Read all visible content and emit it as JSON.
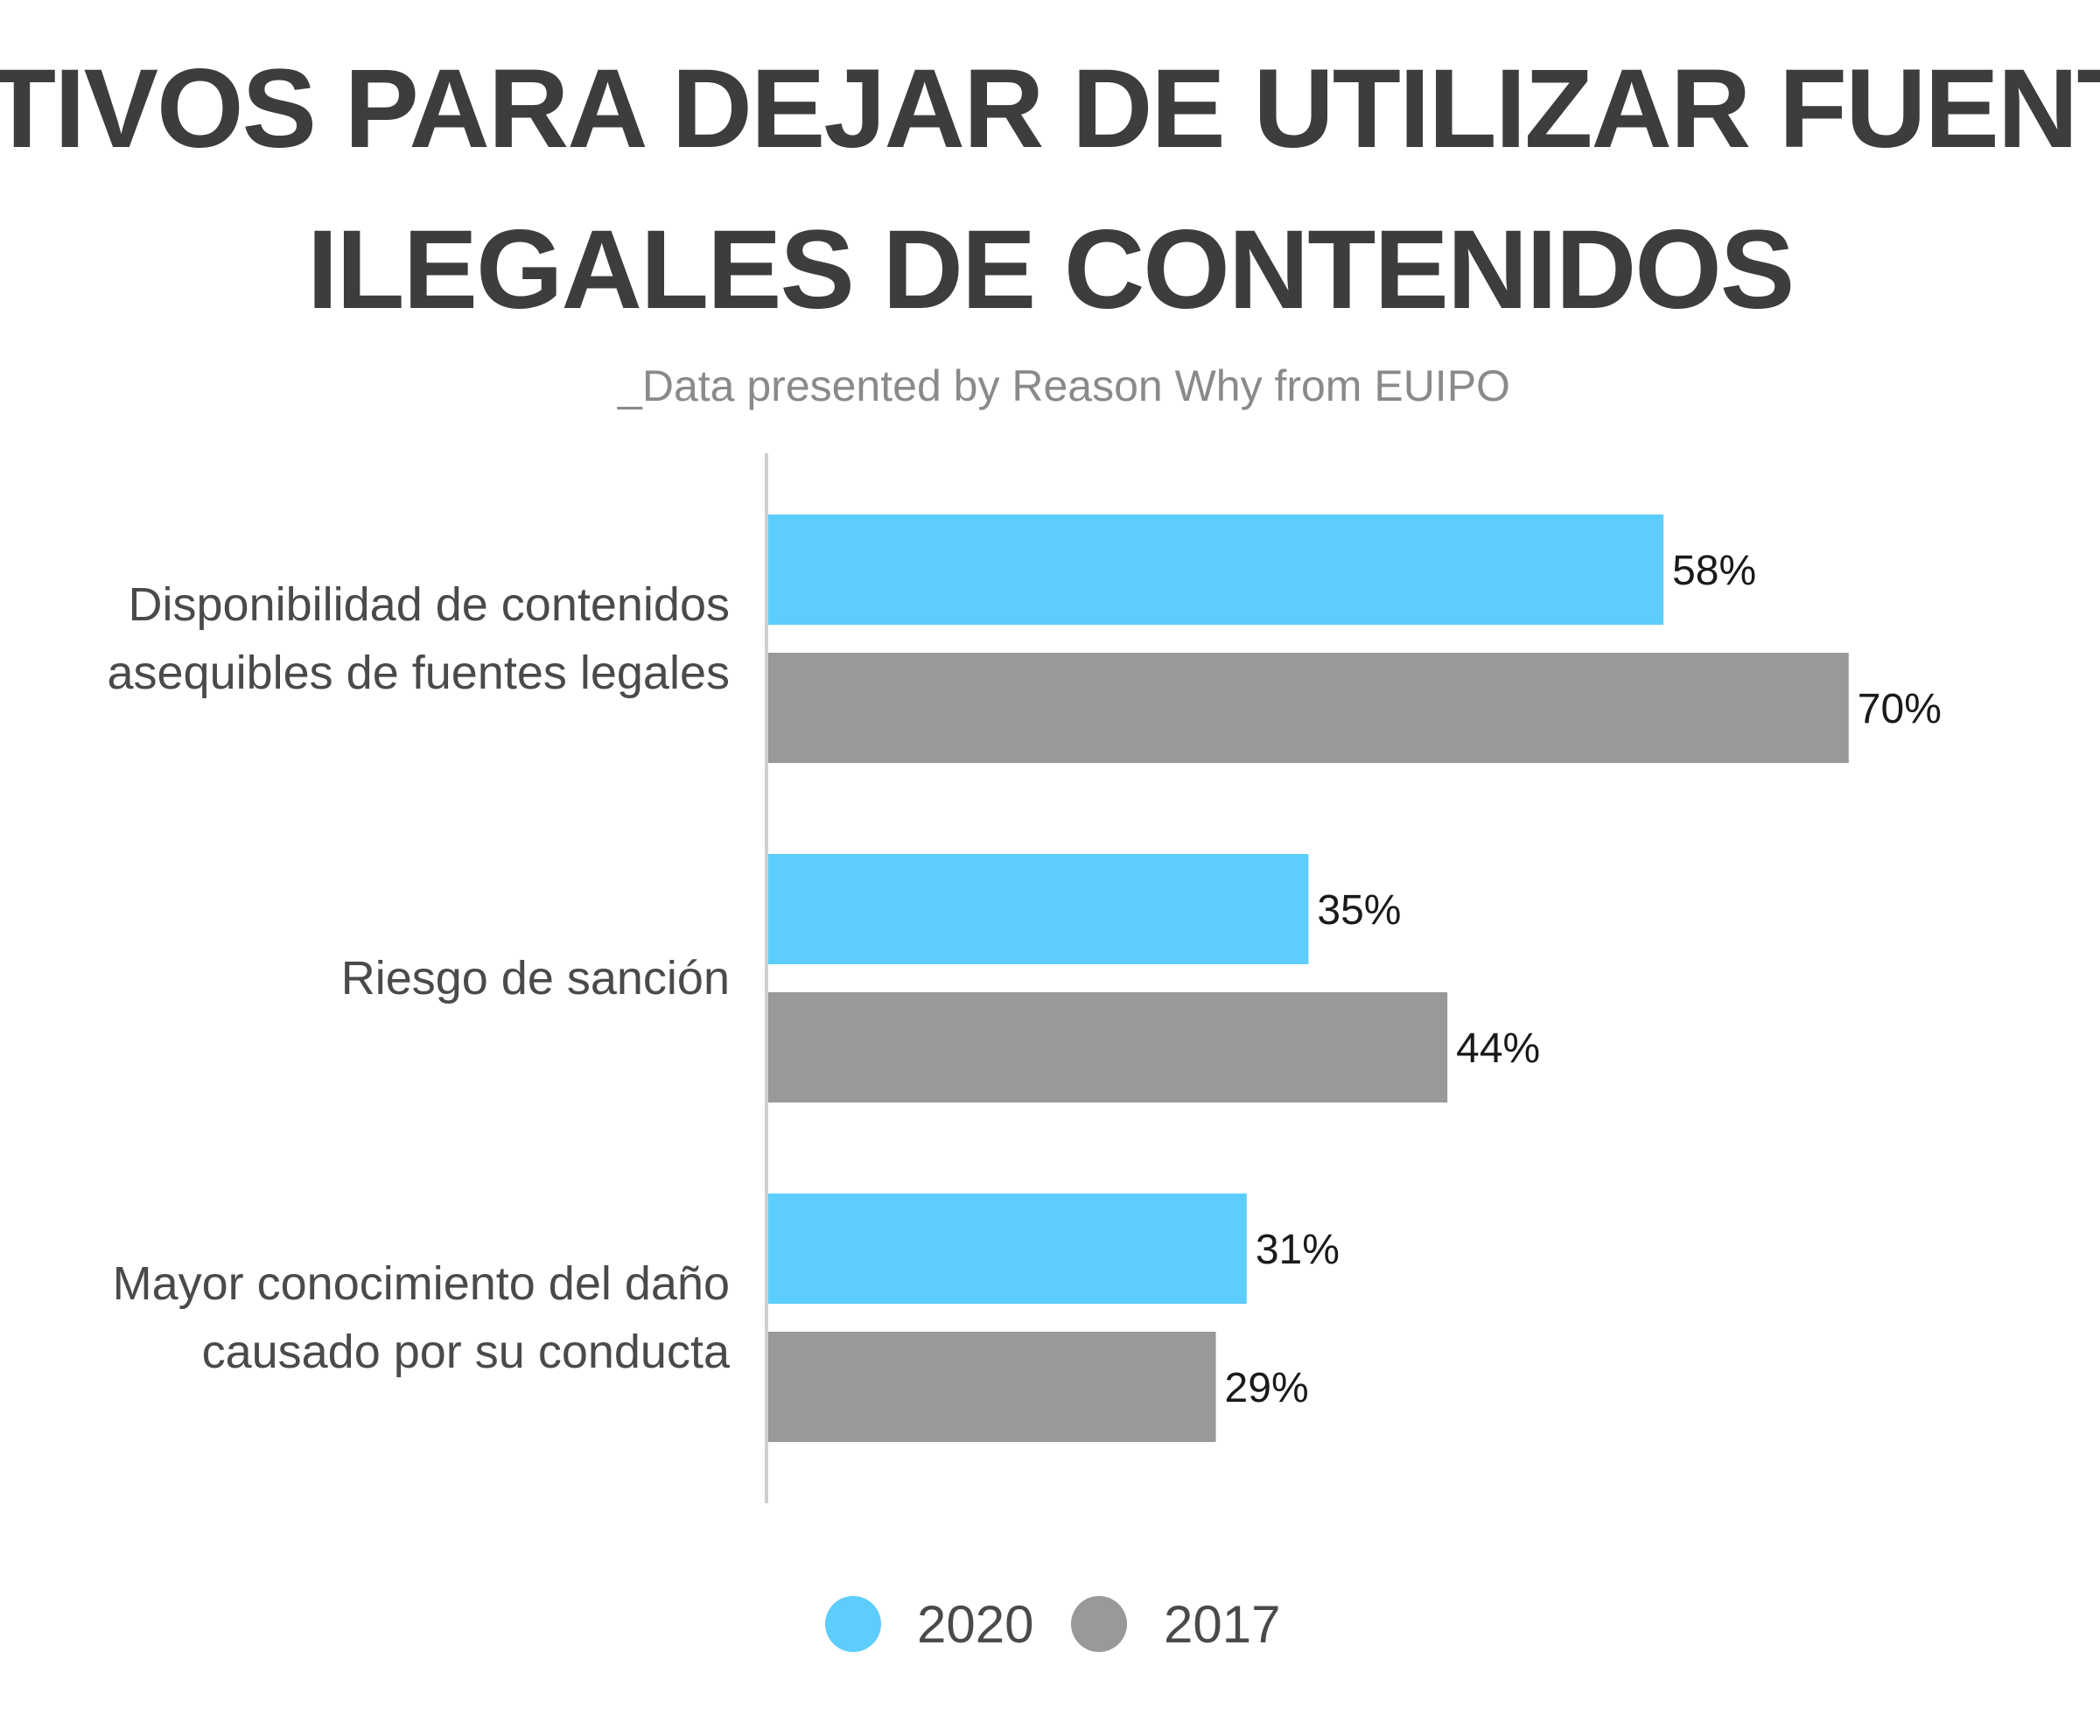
{
  "chart_data": {
    "type": "bar",
    "orientation": "horizontal",
    "title_lines": [
      "MOTIVOS PARA DEJAR DE UTILIZAR FUENTES",
      "ILEGALES DE CONTENIDOS"
    ],
    "subtitle": "_Data presented by Reason Why from EUIPO",
    "categories": [
      [
        "Disponibilidad de contenidos",
        "asequibles de fuentes legales"
      ],
      [
        "Riesgo de sanción"
      ],
      [
        "Mayor conocimiento del daño",
        "causado por su conducta"
      ]
    ],
    "series": [
      {
        "name": "2020",
        "color": "#5ccdfc",
        "values": [
          58,
          35,
          31
        ],
        "labels": [
          "58%",
          "35%",
          "31%"
        ]
      },
      {
        "name": "2017",
        "color": "#999999",
        "values": [
          70,
          44,
          29
        ],
        "labels": [
          "70%",
          "44%",
          "29%"
        ]
      }
    ],
    "value_unit": "%",
    "xlim": [
      0,
      100
    ],
    "grid": false,
    "legend_position": "bottom"
  }
}
